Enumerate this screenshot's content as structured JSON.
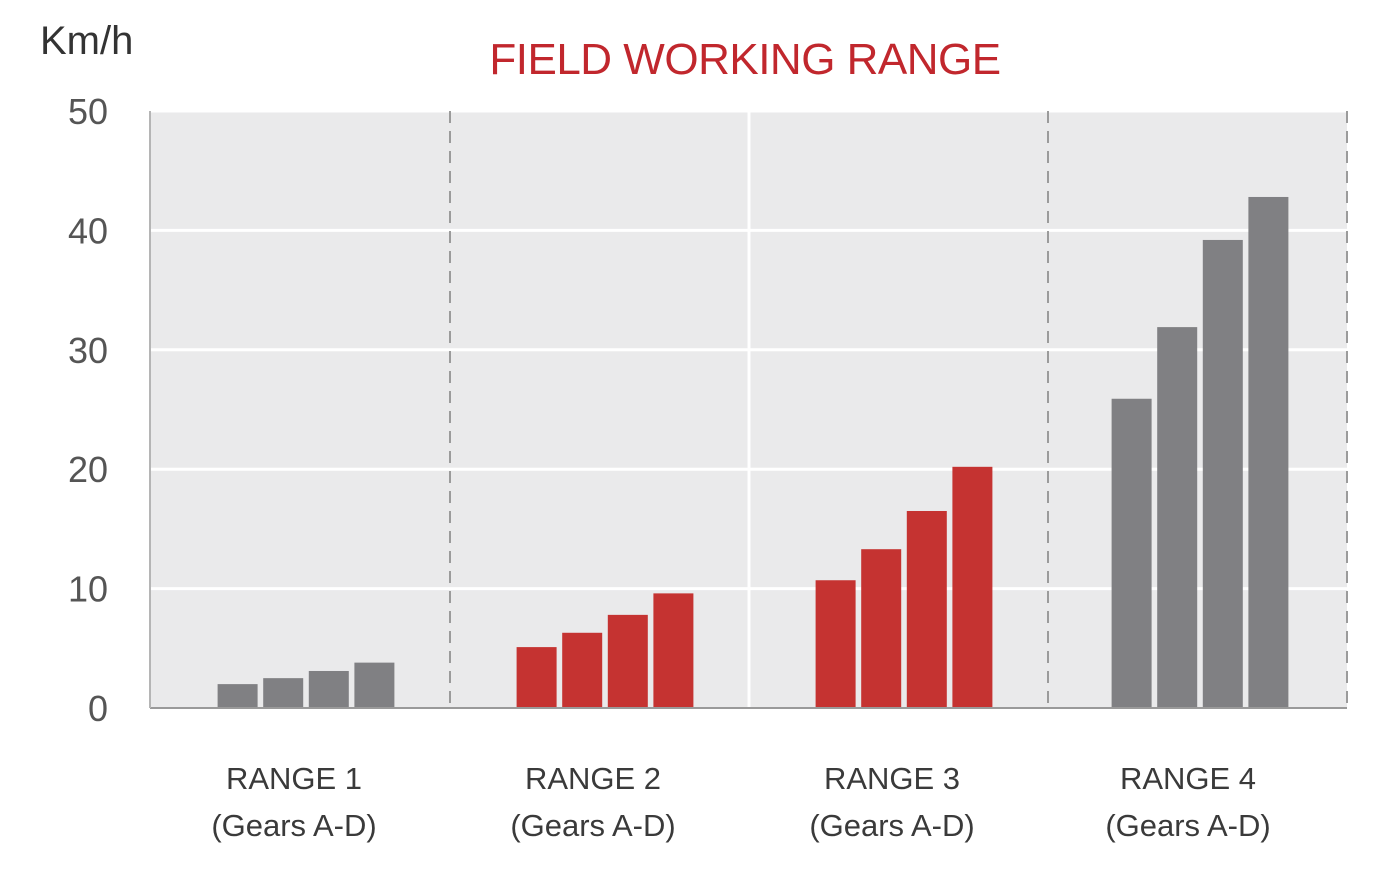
{
  "chart_data": {
    "type": "bar",
    "title": "FIELD WORKING RANGE",
    "ylabel": "Km/h",
    "xlabel": "",
    "ylim": [
      0,
      50
    ],
    "yticks": [
      0,
      10,
      20,
      30,
      40,
      50
    ],
    "grid": true,
    "groups": [
      {
        "label_line1": "RANGE 1",
        "label_line2": "(Gears A-D)",
        "color": "#808083",
        "values": [
          2.0,
          2.5,
          3.1,
          3.8
        ]
      },
      {
        "label_line1": "RANGE 2",
        "label_line2": "(Gears A-D)",
        "color": "#c53331",
        "values": [
          5.1,
          6.3,
          7.8,
          9.6
        ]
      },
      {
        "label_line1": "RANGE 3",
        "label_line2": "(Gears A-D)",
        "color": "#c53331",
        "values": [
          10.7,
          13.3,
          16.5,
          20.2
        ]
      },
      {
        "label_line1": "RANGE 4",
        "label_line2": "(Gears A-D)",
        "color": "#808083",
        "values": [
          25.9,
          31.9,
          39.2,
          42.8
        ]
      }
    ]
  },
  "colors": {
    "plot_background": "#eaeaeb",
    "gridline": "#ffffff",
    "separator": "#9b9b9b",
    "title": "#c1272d"
  }
}
